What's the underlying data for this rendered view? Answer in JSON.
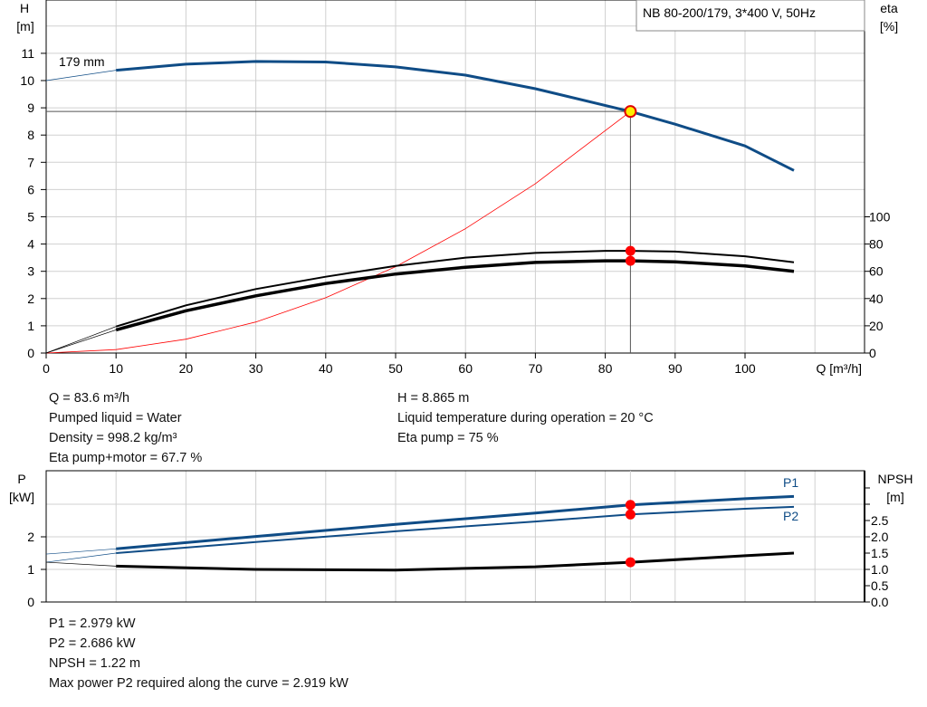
{
  "chart_data": [
    {
      "type": "line",
      "title": "NB 80-200/179, 3*400 V, 50Hz",
      "xlabel": "Q [m³/h]",
      "xlim": [
        0,
        110
      ],
      "xticks": [
        0,
        10,
        20,
        30,
        40,
        50,
        60,
        70,
        80,
        90,
        100
      ],
      "ylabel_left": "H",
      "yunit_left": "[m]",
      "ylim_left": [
        0,
        13
      ],
      "yticks_left": [
        0,
        1,
        2,
        3,
        4,
        5,
        6,
        7,
        8,
        9,
        10,
        11
      ],
      "ylabel_right": "eta",
      "yunit_right": "[%]",
      "yticks_right": [
        0,
        20,
        40,
        60,
        80,
        100
      ],
      "grid": true,
      "impeller_label": "179 mm",
      "series": [
        {
          "axis": "left",
          "color": "#0f4c86",
          "x": [
            0,
            10,
            20,
            30,
            40,
            50,
            60,
            70,
            83.6,
            90,
            100,
            107
          ],
          "y": [
            10,
            10.38,
            10.6,
            10.7,
            10.68,
            10.5,
            10.2,
            9.7,
            8.865,
            8.4,
            7.6,
            6.7
          ]
        },
        {
          "axis": "right",
          "color": "#000000",
          "x": [
            0,
            10,
            20,
            30,
            40,
            50,
            60,
            70,
            80,
            83.6,
            90,
            100,
            107
          ],
          "y": [
            0,
            19.5,
            35,
            47,
            56,
            64,
            70,
            73.5,
            75,
            75,
            74.5,
            71,
            66.6
          ]
        },
        {
          "axis": "right",
          "color": "#000000",
          "x": [
            0,
            10,
            20,
            30,
            40,
            50,
            60,
            70,
            80,
            83.6,
            90,
            100,
            107
          ],
          "y": [
            0,
            17,
            31,
            42,
            51,
            58,
            63,
            66.5,
            67.7,
            67.7,
            67,
            64,
            60
          ]
        },
        {
          "axis": "left",
          "color": "#ff0000",
          "x": [
            0,
            10,
            20,
            30,
            40,
            50,
            60,
            70,
            83.6
          ],
          "y": [
            0,
            0.127,
            0.507,
            1.141,
            2.029,
            3.171,
            4.566,
            6.215,
            8.865
          ]
        }
      ],
      "duty_point": {
        "Q": 83.6,
        "H": 8.865,
        "eta_pump": 75,
        "eta_pump_motor": 67.7
      }
    },
    {
      "type": "line",
      "xlim": [
        0,
        110
      ],
      "ylabel_left": "P",
      "yunit_left": "[kW]",
      "yticks_left": [
        0,
        1,
        2
      ],
      "ylabel_right": "NPSH",
      "yunit_right": "[m]",
      "yticks_right": [
        "0.0",
        "0.5",
        "1.0",
        "1.5",
        "2.0",
        "2.5"
      ],
      "grid": true,
      "series": [
        {
          "name": "P1",
          "color": "#0f4c86",
          "x": [
            0,
            10,
            30,
            50,
            70,
            83.6,
            100,
            107
          ],
          "y": [
            1.47,
            1.63,
            2.01,
            2.38,
            2.73,
            2.979,
            3.17,
            3.24
          ]
        },
        {
          "name": "P2",
          "color": "#0f4c86",
          "x": [
            0,
            10,
            30,
            50,
            70,
            83.6,
            100,
            107
          ],
          "y": [
            1.22,
            1.5,
            1.84,
            2.17,
            2.47,
            2.686,
            2.86,
            2.92
          ]
        },
        {
          "color": "#000000",
          "x": [
            0,
            10,
            30,
            50,
            70,
            83.6,
            100,
            107
          ],
          "y": [
            1.22,
            1.1,
            1.0,
            0.98,
            1.08,
            1.22,
            1.42,
            1.5
          ]
        }
      ],
      "duty_point": {
        "Q": 83.6,
        "P1": 2.979,
        "P2": 2.686,
        "NPSH": 1.22
      }
    }
  ],
  "info_top": {
    "left": [
      "Q = 83.6 m³/h",
      "Pumped liquid = Water",
      "Density = 998.2 kg/m³",
      "Eta pump+motor = 67.7 %"
    ],
    "right": [
      "H = 8.865 m",
      "Liquid temperature during operation = 20 °C",
      "Eta pump = 75 %"
    ]
  },
  "info_bottom": [
    "P1 = 2.979 kW",
    "P2 = 2.686 kW",
    "NPSH = 1.22 m",
    "Max power P2 required along the curve = 2.919 kW"
  ]
}
